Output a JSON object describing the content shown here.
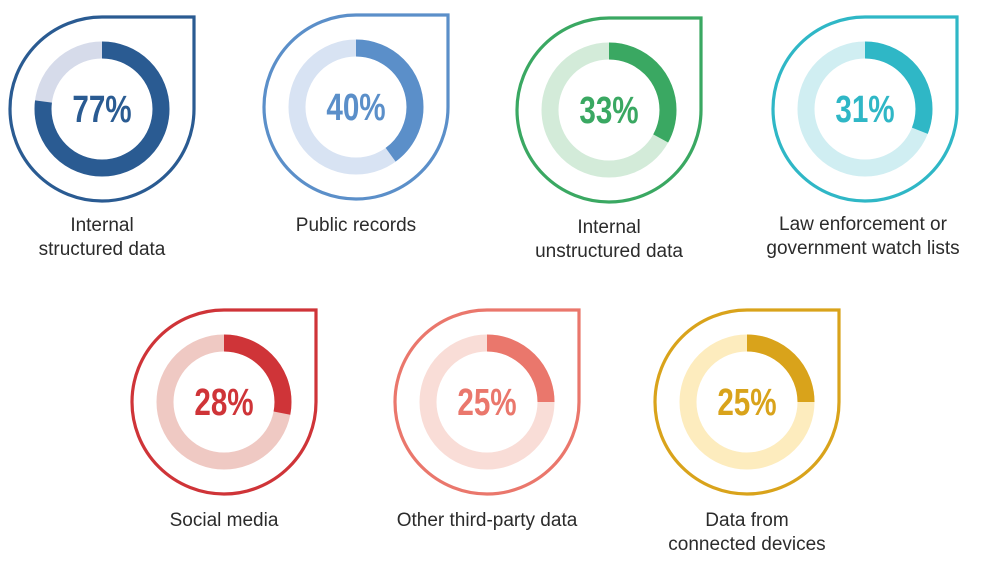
{
  "chart_data": {
    "type": "donut",
    "title": "",
    "unit": "%",
    "categories": [
      "Internal structured data",
      "Public records",
      "Internal unstructured data",
      "Law enforcement or government watch lists",
      "Social media",
      "Other third-party data",
      "Data from connected devices"
    ],
    "values": [
      77,
      40,
      33,
      31,
      28,
      25,
      25
    ],
    "items": [
      {
        "value": 77,
        "value_label": "77%",
        "label_lines": [
          "Internal",
          "structured data"
        ],
        "color": "#2a5b92",
        "track": "#d6dbea"
      },
      {
        "value": 40,
        "value_label": "40%",
        "label_lines": [
          "Public records"
        ],
        "color": "#5b8fc9",
        "track": "#d8e3f3"
      },
      {
        "value": 33,
        "value_label": "33%",
        "label_lines": [
          "Internal",
          "unstructured data"
        ],
        "color": "#3aa862",
        "track": "#d3ebd9"
      },
      {
        "value": 31,
        "value_label": "31%",
        "label_lines": [
          "Law enforcement or",
          "government watch lists"
        ],
        "color": "#2fb7c6",
        "track": "#d0eef2"
      },
      {
        "value": 28,
        "value_label": "28%",
        "label_lines": [
          "Social media"
        ],
        "color": "#cf3438",
        "track": "#efc9c3"
      },
      {
        "value": 25,
        "value_label": "25%",
        "label_lines": [
          "Other third-party data"
        ],
        "color": "#ea776c",
        "track": "#f9ddd7"
      },
      {
        "value": 25,
        "value_label": "25%",
        "label_lines": [
          "Data from",
          "connected devices"
        ],
        "color": "#d9a31b",
        "track": "#fdecbe"
      }
    ]
  }
}
